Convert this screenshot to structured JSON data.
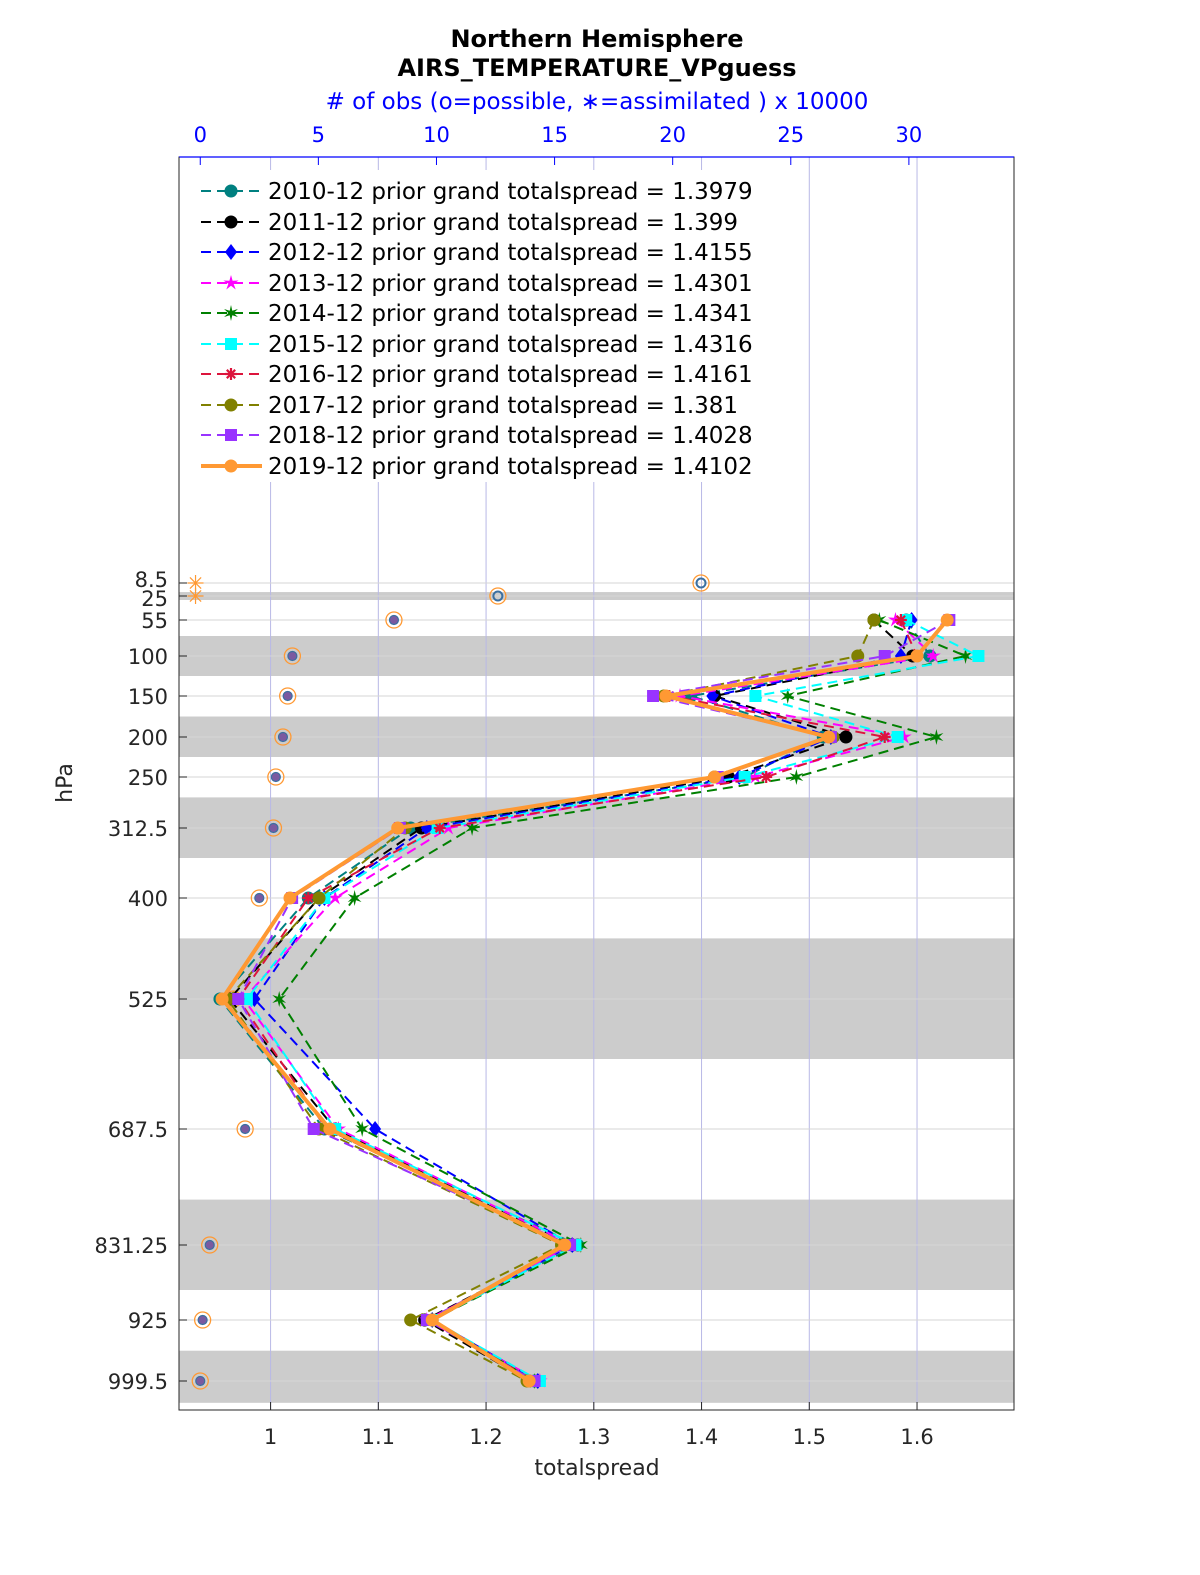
{
  "chart_data": {
    "type": "line",
    "title": "Northern Hemisphere",
    "subtitle": "AIRS_TEMPERATURE_VPguess",
    "top_axis_label": "# of obs (o=possible, ∗=assimilated ) x 10000",
    "xlabel": "totalspread",
    "ylabel": "hPa",
    "xlim": [
      0.915,
      1.69
    ],
    "top_xlim": [
      -0.9,
      34.45
    ],
    "x_ticks": [
      "1",
      "1.1",
      "1.2",
      "1.3",
      "1.4",
      "1.5",
      "1.6"
    ],
    "x_tick_values": [
      1.0,
      1.1,
      1.2,
      1.3,
      1.4,
      1.5,
      1.6
    ],
    "top_ticks": [
      "0",
      "5",
      "10",
      "15",
      "20",
      "25",
      "30"
    ],
    "top_tick_values": [
      0,
      5,
      10,
      15,
      20,
      25,
      30
    ],
    "y_ticks": [
      "8.5",
      "25",
      "55",
      "100",
      "150",
      "200",
      "250",
      "312.5",
      "400",
      "525",
      "687.5",
      "831.25",
      "925",
      "999.5"
    ],
    "levels": [
      55,
      100,
      150,
      200,
      250,
      312.5,
      400,
      525,
      687.5,
      831.25,
      925,
      999.5
    ],
    "bands": [
      [
        20,
        30
      ],
      [
        75,
        125
      ],
      [
        175,
        225
      ],
      [
        275,
        350
      ],
      [
        450,
        600
      ],
      [
        775,
        887.5
      ],
      [
        962.5,
        1037.5
      ]
    ],
    "series": [
      {
        "name": "2010-12",
        "label": "2010-12 prior grand totalspread = 1.3979",
        "color": "#008080",
        "marker": "circle",
        "dashed": true,
        "values": [
          1.59,
          1.612,
          1.39,
          1.513,
          1.44,
          1.13,
          1.035,
          0.953,
          1.05,
          1.285,
          1.15,
          1.245
        ]
      },
      {
        "name": "2011-12",
        "label": "2011-12 prior grand totalspread = 1.399",
        "color": "#000000",
        "marker": "circle",
        "dashed": true,
        "values": [
          1.56,
          1.596,
          1.412,
          1.534,
          1.425,
          1.14,
          1.045,
          0.962,
          1.06,
          1.28,
          1.143,
          1.24
        ]
      },
      {
        "name": "2012-12",
        "label": "2012-12 prior grand totalspread = 1.4155",
        "color": "#0000ff",
        "marker": "diamond",
        "dashed": true,
        "values": [
          1.595,
          1.585,
          1.41,
          1.52,
          1.435,
          1.145,
          1.05,
          0.985,
          1.097,
          1.28,
          1.15,
          1.248
        ]
      },
      {
        "name": "2013-12",
        "label": "2013-12 prior grand totalspread = 1.4301",
        "color": "#ff00ff",
        "marker": "star",
        "dashed": true,
        "values": [
          1.58,
          1.615,
          1.38,
          1.588,
          1.45,
          1.165,
          1.06,
          0.975,
          1.063,
          1.28,
          1.145,
          1.25
        ]
      },
      {
        "name": "2014-12",
        "label": "2014-12 prior grand totalspread = 1.4341",
        "color": "#008000",
        "marker": "hexagram",
        "dashed": true,
        "values": [
          1.565,
          1.645,
          1.48,
          1.618,
          1.488,
          1.187,
          1.078,
          1.008,
          1.085,
          1.288,
          1.15,
          1.245
        ]
      },
      {
        "name": "2015-12",
        "label": "2015-12 prior grand totalspread = 1.4316",
        "color": "#00ffff",
        "marker": "square",
        "dashed": true,
        "values": [
          1.59,
          1.657,
          1.45,
          1.582,
          1.44,
          1.155,
          1.05,
          0.978,
          1.06,
          1.283,
          1.15,
          1.25
        ]
      },
      {
        "name": "2016-12",
        "label": "2016-12 prior grand totalspread = 1.4161",
        "color": "#dc143c",
        "marker": "asterisk",
        "dashed": true,
        "values": [
          1.585,
          1.6,
          1.37,
          1.57,
          1.46,
          1.157,
          1.035,
          0.97,
          1.052,
          1.275,
          1.148,
          1.245
        ]
      },
      {
        "name": "2017-12",
        "label": "2017-12 prior grand totalspread = 1.381",
        "color": "#808000",
        "marker": "circle",
        "dashed": true,
        "values": [
          1.56,
          1.545,
          1.365,
          1.522,
          1.412,
          1.125,
          1.045,
          0.96,
          1.045,
          1.27,
          1.13,
          1.238
        ]
      },
      {
        "name": "2018-12",
        "label": "2018-12 prior grand totalspread = 1.4028",
        "color": "#9933ff",
        "marker": "square",
        "dashed": true,
        "values": [
          1.63,
          1.57,
          1.355,
          1.52,
          1.415,
          1.12,
          1.02,
          0.97,
          1.04,
          1.278,
          1.145,
          1.245
        ]
      },
      {
        "name": "2019-12",
        "label": "2019-12 prior grand totalspread = 1.4102",
        "color": "#ff9933",
        "marker": "circle",
        "dashed": false,
        "values": [
          1.628,
          1.6,
          1.367,
          1.518,
          1.412,
          1.118,
          1.018,
          0.955,
          1.055,
          1.273,
          1.15,
          1.24
        ]
      }
    ],
    "obs_counts_x10000": {
      "levels": [
        8.5,
        25,
        55,
        100,
        150,
        200,
        250,
        312.5,
        400,
        525,
        687.5,
        831.25,
        925,
        999.5
      ],
      "possible": [
        21.2,
        12.6,
        8.2,
        3.9,
        3.7,
        3.5,
        3.2,
        3.1,
        2.5,
        1.4,
        1.9,
        0.4,
        0.1,
        0.0
      ],
      "assimilated": [
        -0.2,
        -0.2,
        8.2,
        3.9,
        3.7,
        3.5,
        3.2,
        3.1,
        2.5,
        1.4,
        1.9,
        0.4,
        0.1,
        0.0
      ]
    }
  }
}
